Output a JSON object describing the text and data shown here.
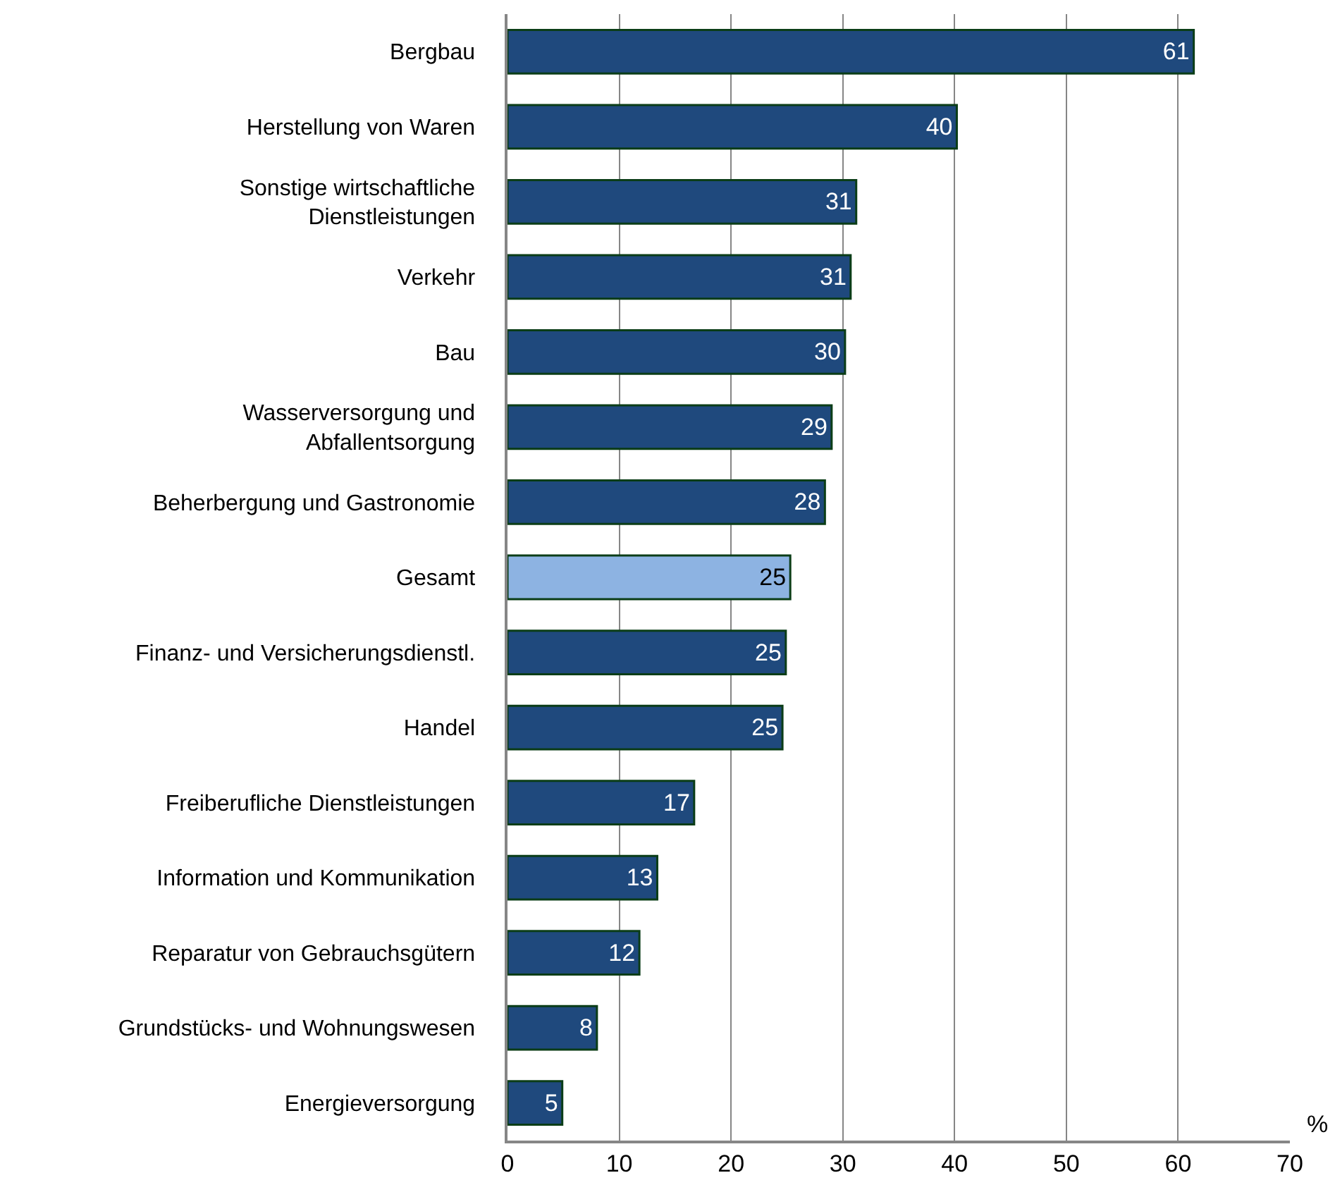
{
  "chart_data": {
    "type": "bar",
    "orientation": "horizontal",
    "xlabel": "%",
    "categories": [
      "Bergbau",
      "Herstellung von Waren",
      "Sonstige wirtschaftliche\nDienstleistungen",
      "Verkehr",
      "Bau",
      "Wasserversorgung und\nAbfallentsorgung",
      "Beherbergung und Gastronomie",
      "Gesamt",
      "Finanz- und Versicherungsdienstl.",
      "Handel",
      "Freiberufliche Dienstleistungen",
      "Information und Kommunikation",
      "Reparatur von Gebrauchsgütern",
      "Grundstücks- und Wohnungswesen",
      "Energieversorgung"
    ],
    "values": [
      61.4,
      40.2,
      31.2,
      30.7,
      30.2,
      29.0,
      28.4,
      25.3,
      24.9,
      24.6,
      16.7,
      13.4,
      11.8,
      8.0,
      4.9
    ],
    "value_labels": [
      "61",
      "40",
      "31",
      "31",
      "30",
      "29",
      "28",
      "25",
      "25",
      "25",
      "17",
      "13",
      "12",
      "8",
      "5"
    ],
    "colors": [
      "#1f497d",
      "#1f497d",
      "#1f497d",
      "#1f497d",
      "#1f497d",
      "#1f497d",
      "#1f497d",
      "#8db3e2",
      "#1f497d",
      "#1f497d",
      "#1f497d",
      "#1f497d",
      "#1f497d",
      "#1f497d",
      "#1f497d"
    ],
    "xlim": [
      0,
      70
    ],
    "xticks": [
      0,
      10,
      20,
      30,
      40,
      50,
      60,
      70
    ],
    "grid": "x"
  }
}
